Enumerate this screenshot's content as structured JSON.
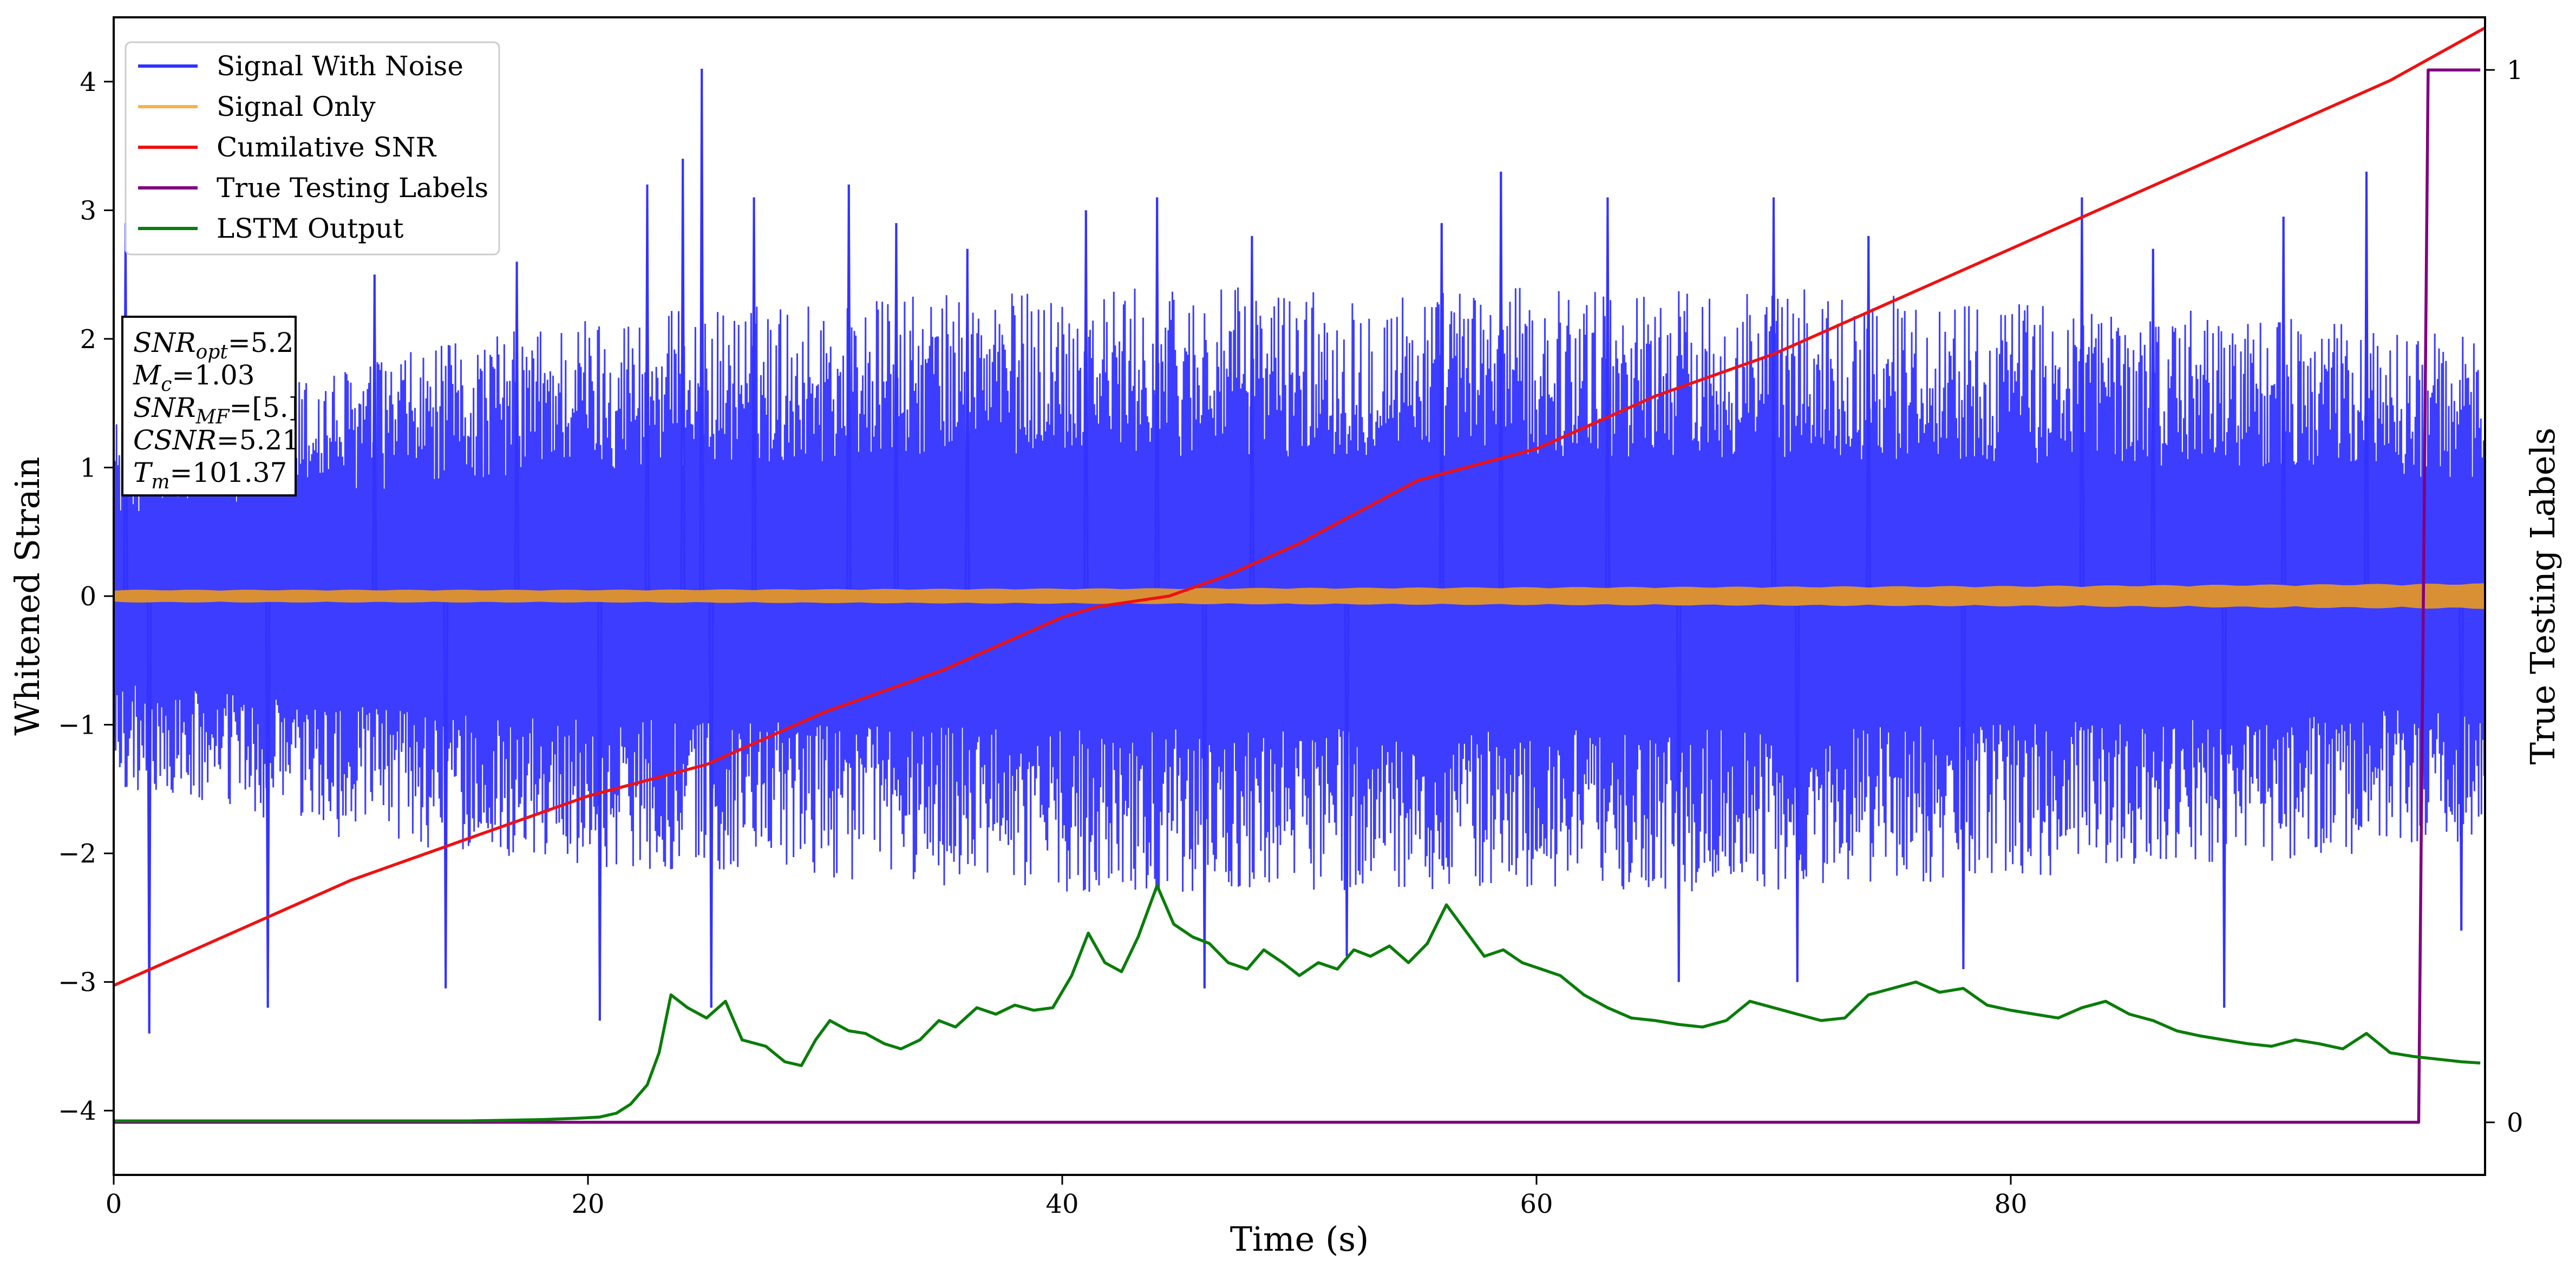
{
  "chart_data": {
    "type": "line",
    "title": "",
    "xlabel": "Time (s)",
    "ylabel": "Whitened Strain",
    "ylabel_right": "True Testing Labels",
    "xlim": [
      0,
      100
    ],
    "ylim": [
      -4.5,
      4.5
    ],
    "ylim_right": [
      -0.05,
      1.05
    ],
    "x_ticks": [
      0,
      20,
      40,
      60,
      80
    ],
    "x_tick_labels": [
      "0",
      "20",
      "40",
      "60",
      "80"
    ],
    "y_ticks": [
      -4,
      -3,
      -2,
      -1,
      0,
      1,
      2,
      3,
      4
    ],
    "y_tick_labels": [
      "−4",
      "−3",
      "−2",
      "−1",
      "0",
      "1",
      "2",
      "3",
      "4"
    ],
    "y_right_ticks": [
      0,
      1
    ],
    "y_right_tick_labels": [
      "0",
      "1"
    ],
    "grid": false,
    "legend_placement": "top-left",
    "series": [
      {
        "name": "Signal With Noise",
        "color": "#3333ff",
        "axis": "left",
        "envelope": [
          [
            0,
            1.4,
            -1.5
          ],
          [
            10,
            1.8,
            -1.9
          ],
          [
            20,
            2.2,
            -2.1
          ],
          [
            30,
            2.3,
            -2.2
          ],
          [
            40,
            2.4,
            -2.3
          ],
          [
            50,
            2.4,
            -2.3
          ],
          [
            60,
            2.4,
            -2.3
          ],
          [
            70,
            2.4,
            -2.3
          ],
          [
            80,
            2.3,
            -2.2
          ],
          [
            90,
            2.2,
            -2.1
          ],
          [
            100,
            2.0,
            -1.9
          ]
        ],
        "spikes": [
          [
            0.5,
            2.9
          ],
          [
            1.5,
            -3.4
          ],
          [
            6.5,
            -3.2
          ],
          [
            11,
            2.5
          ],
          [
            14,
            -3.05
          ],
          [
            17,
            2.6
          ],
          [
            20.5,
            -3.3
          ],
          [
            22.5,
            3.2
          ],
          [
            24,
            3.4
          ],
          [
            24.8,
            4.1
          ],
          [
            25.2,
            -3.2
          ],
          [
            27,
            3.1
          ],
          [
            31,
            3.2
          ],
          [
            33,
            2.9
          ],
          [
            36,
            2.7
          ],
          [
            41,
            3.0
          ],
          [
            44,
            3.1
          ],
          [
            46,
            -3.05
          ],
          [
            48,
            2.8
          ],
          [
            52,
            -2.8
          ],
          [
            56,
            2.9
          ],
          [
            58.5,
            3.3
          ],
          [
            63,
            3.1
          ],
          [
            66,
            -3.0
          ],
          [
            70,
            3.1
          ],
          [
            71,
            -3.0
          ],
          [
            74,
            2.8
          ],
          [
            78,
            -2.9
          ],
          [
            83,
            3.1
          ],
          [
            86,
            2.7
          ],
          [
            89,
            -3.2
          ],
          [
            91.5,
            2.95
          ],
          [
            95,
            3.3
          ],
          [
            99,
            -2.6
          ]
        ]
      },
      {
        "name": "Signal Only",
        "color": "#f5b24b",
        "axis": "left",
        "x": [
          0,
          20,
          40,
          60,
          80,
          100
        ],
        "amplitude": [
          0.05,
          0.05,
          0.06,
          0.07,
          0.08,
          0.1
        ]
      },
      {
        "name": "Cumilative SNR",
        "color": "#ee1111",
        "axis": "right",
        "x": [
          0,
          2,
          5,
          10,
          15,
          20,
          25,
          30,
          35,
          40,
          41.5,
          44.5,
          47,
          50,
          55,
          60,
          65,
          70,
          75,
          80,
          85,
          88,
          92,
          96,
          100
        ],
        "y": [
          0.13,
          0.15,
          0.18,
          0.23,
          0.27,
          0.31,
          0.34,
          0.39,
          0.43,
          0.48,
          0.49,
          0.5,
          0.52,
          0.55,
          0.61,
          0.64,
          0.69,
          0.73,
          0.78,
          0.83,
          0.88,
          0.91,
          0.95,
          0.99,
          1.04
        ]
      },
      {
        "name": "True Testing Labels",
        "color": "#800080",
        "axis": "right",
        "x": [
          0,
          97.2,
          97.6,
          99.8
        ],
        "y": [
          0,
          0,
          1,
          1
        ]
      },
      {
        "name": "LSTM Output",
        "color": "#0a7d0a",
        "axis": "left",
        "x": [
          0,
          15,
          18,
          19.5,
          20.5,
          21.2,
          21.8,
          22.5,
          23,
          23.5,
          24.2,
          25,
          25.8,
          26.5,
          27.5,
          28.3,
          29,
          29.6,
          30.2,
          31,
          31.7,
          32.5,
          33.2,
          34,
          34.8,
          35.5,
          36.4,
          37.2,
          38,
          38.8,
          39.6,
          40.4,
          41.1,
          41.8,
          42.5,
          43.2,
          44,
          44.7,
          45.5,
          46.2,
          47,
          47.8,
          48.5,
          49.3,
          50,
          50.8,
          51.6,
          52.3,
          53,
          53.8,
          54.6,
          55.4,
          56.2,
          57,
          57.8,
          58.6,
          59.4,
          60.2,
          61,
          62,
          63,
          64,
          65,
          66,
          67,
          68,
          69,
          70,
          71,
          72,
          73,
          74,
          75,
          76,
          77,
          78,
          79,
          80,
          81,
          82,
          83,
          84,
          85,
          86,
          87,
          88,
          89,
          90,
          91,
          92,
          93,
          94,
          95,
          96,
          97,
          98,
          99,
          99.8
        ],
        "y": [
          -4.08,
          -4.08,
          -4.07,
          -4.06,
          -4.05,
          -4.02,
          -3.95,
          -3.8,
          -3.55,
          -3.1,
          -3.2,
          -3.28,
          -3.15,
          -3.45,
          -3.5,
          -3.62,
          -3.65,
          -3.45,
          -3.3,
          -3.38,
          -3.4,
          -3.48,
          -3.52,
          -3.45,
          -3.3,
          -3.35,
          -3.2,
          -3.25,
          -3.18,
          -3.22,
          -3.2,
          -2.95,
          -2.62,
          -2.85,
          -2.92,
          -2.65,
          -2.25,
          -2.55,
          -2.65,
          -2.7,
          -2.85,
          -2.9,
          -2.75,
          -2.85,
          -2.95,
          -2.85,
          -2.9,
          -2.75,
          -2.8,
          -2.72,
          -2.85,
          -2.7,
          -2.4,
          -2.6,
          -2.8,
          -2.75,
          -2.85,
          -2.9,
          -2.95,
          -3.1,
          -3.2,
          -3.28,
          -3.3,
          -3.33,
          -3.35,
          -3.3,
          -3.15,
          -3.2,
          -3.25,
          -3.3,
          -3.28,
          -3.1,
          -3.05,
          -3.0,
          -3.08,
          -3.05,
          -3.18,
          -3.22,
          -3.25,
          -3.28,
          -3.2,
          -3.15,
          -3.25,
          -3.3,
          -3.38,
          -3.42,
          -3.45,
          -3.48,
          -3.5,
          -3.45,
          -3.48,
          -3.52,
          -3.4,
          -3.55,
          -3.58,
          -3.6,
          -3.62,
          -3.63
        ]
      }
    ],
    "annotations": [
      {
        "base": "SNR",
        "sub": "opt",
        "value": "=5.2"
      },
      {
        "base": "M",
        "sub": "c",
        "value": "=1.03"
      },
      {
        "base": "SNR",
        "sub": "MF",
        "value": "=[5.]"
      },
      {
        "base": "CSNR",
        "sub": "",
        "value": "=5.21"
      },
      {
        "base": "T",
        "sub": "m",
        "value": "=101.37"
      }
    ]
  }
}
